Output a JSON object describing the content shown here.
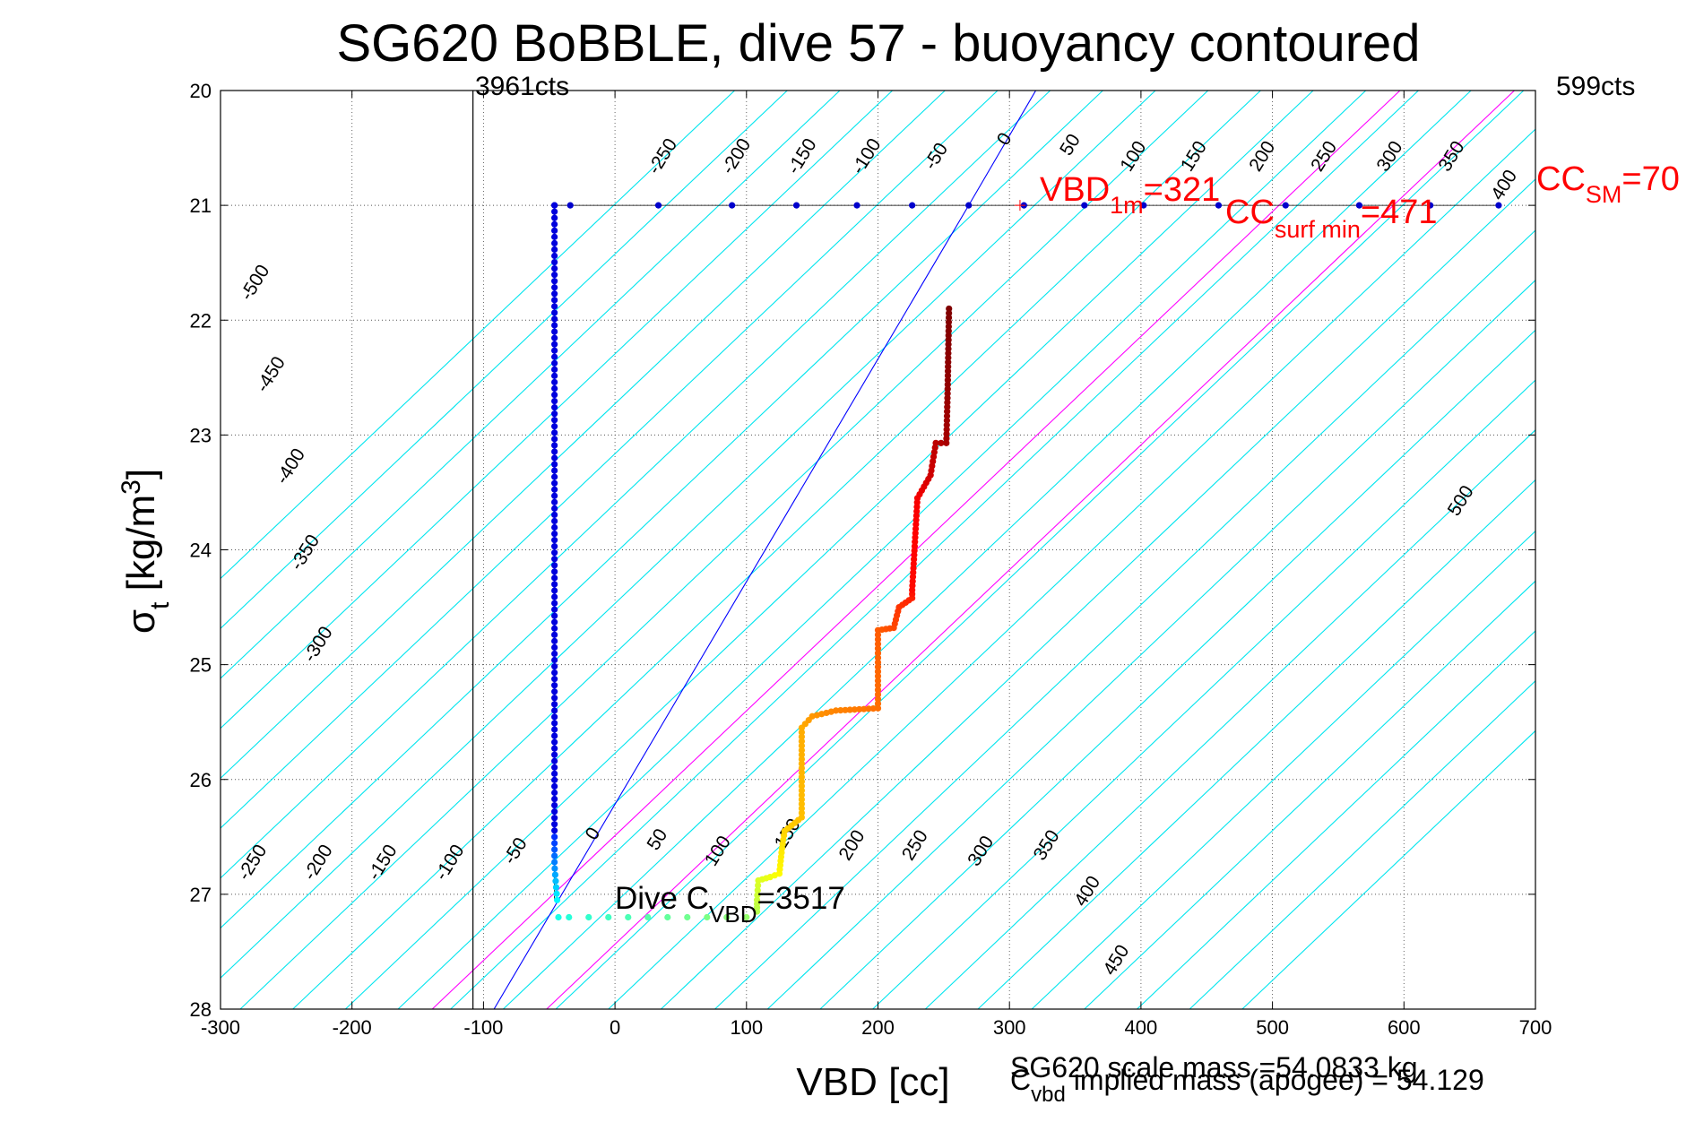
{
  "chart_data": {
    "type": "scatter",
    "title": "SG620 BoBBLE, dive 57 - buoyancy contoured",
    "xlabel": "VBD [cc]",
    "ylabel": {
      "main": "σ",
      "sub": "t",
      "rest": " [kg/m",
      "sup": "3",
      "close": "]"
    },
    "xlim": [
      -300,
      700
    ],
    "ylim": [
      20,
      28
    ],
    "y_reversed": true,
    "grid": true,
    "xticks": [
      -300,
      -200,
      -100,
      0,
      100,
      200,
      300,
      400,
      500,
      600,
      700
    ],
    "yticks": [
      20,
      21,
      22,
      23,
      24,
      25,
      26,
      27,
      28
    ],
    "xtick_labels": [
      "-300",
      "-200",
      "-100",
      "0",
      "100",
      "200",
      "300",
      "400",
      "500",
      "600",
      "700"
    ],
    "ytick_labels": [
      "20",
      "21",
      "22",
      "23",
      "24",
      "25",
      "26",
      "27",
      "28"
    ],
    "colors": {
      "contour": "#00e5ee",
      "zero_contour": "#0000ff",
      "magenta": "#ff00ff",
      "annotation": "#ff0000",
      "vertical_line": "#000000"
    },
    "contours": {
      "slope_cc_per_sigma": -92,
      "values": [
        -500,
        -450,
        -400,
        -350,
        -300,
        -250,
        -200,
        -150,
        -100,
        -50,
        0,
        50,
        100,
        150,
        200,
        250,
        300,
        350,
        400,
        450,
        500
      ],
      "zero_crossing_at_27": [
        -233,
        -193,
        -153,
        -113,
        -73,
        -33,
        7,
        47,
        87,
        127,
        168,
        208,
        248,
        288,
        328,
        368,
        409,
        449,
        489,
        529,
        569
      ],
      "magenta_crossing_at_27": [
        -47,
        40
      ],
      "blue_line": [
        [
          -92,
          28
        ],
        [
          269,
          21
        ],
        [
          320,
          20
        ]
      ]
    },
    "contour_labels_top": [
      {
        "text": "-250",
        "x": 40,
        "y": 20.6
      },
      {
        "text": "-200",
        "x": 96,
        "y": 20.6
      },
      {
        "text": "-150",
        "x": 146,
        "y": 20.6
      },
      {
        "text": "-100",
        "x": 195,
        "y": 20.6
      },
      {
        "text": "-50",
        "x": 248,
        "y": 20.6
      },
      {
        "text": "0",
        "x": 300,
        "y": 20.45
      },
      {
        "text": "50",
        "x": 350,
        "y": 20.5
      },
      {
        "text": "100",
        "x": 398,
        "y": 20.6
      },
      {
        "text": "150",
        "x": 444,
        "y": 20.6
      },
      {
        "text": "200",
        "x": 496,
        "y": 20.6
      },
      {
        "text": "250",
        "x": 543,
        "y": 20.6
      },
      {
        "text": "300",
        "x": 593,
        "y": 20.6
      },
      {
        "text": "350",
        "x": 640,
        "y": 20.6
      },
      {
        "text": "400",
        "x": 680,
        "y": 20.85
      }
    ],
    "contour_labels_left": [
      {
        "text": "-500",
        "x": -270,
        "y": 21.7
      },
      {
        "text": "-450",
        "x": -258,
        "y": 22.5
      },
      {
        "text": "-400",
        "x": -243,
        "y": 23.3
      },
      {
        "text": "-350",
        "x": -232,
        "y": 24.05
      },
      {
        "text": "-300",
        "x": -222,
        "y": 24.85
      }
    ],
    "contour_labels_bottom": [
      {
        "text": "-250",
        "x": -272,
        "y": 26.75
      },
      {
        "text": "-200",
        "x": -222,
        "y": 26.75
      },
      {
        "text": "-150",
        "x": -173,
        "y": 26.75
      },
      {
        "text": "-100",
        "x": -122,
        "y": 26.75
      },
      {
        "text": "-50",
        "x": -72,
        "y": 26.65
      },
      {
        "text": "0",
        "x": -13,
        "y": 26.5
      },
      {
        "text": "50",
        "x": 36,
        "y": 26.55
      },
      {
        "text": "100",
        "x": 82,
        "y": 26.65
      },
      {
        "text": "150",
        "x": 135,
        "y": 26.5
      },
      {
        "text": "200",
        "x": 184,
        "y": 26.6
      },
      {
        "text": "250",
        "x": 232,
        "y": 26.6
      },
      {
        "text": "300",
        "x": 282,
        "y": 26.65
      },
      {
        "text": "350",
        "x": 332,
        "y": 26.6
      },
      {
        "text": "400",
        "x": 363,
        "y": 27.0
      },
      {
        "text": "450",
        "x": 385,
        "y": 27.6
      },
      {
        "text": "500",
        "x": 647,
        "y": 23.6
      }
    ],
    "vertical_line_x": -108,
    "dive_path": {
      "surface_row_y": 21.0,
      "surface_x": [
        -46,
        -34,
        33,
        89,
        138,
        184,
        226,
        269,
        311,
        357,
        402,
        459,
        510,
        566,
        620,
        672
      ],
      "descent_column_x": -46,
      "descent_from": 21.0,
      "descent_to": 27.05,
      "bottom_row_y": 27.2,
      "bottom_row_x": [
        -43,
        -35,
        -20,
        -5,
        10,
        25,
        40,
        55,
        70,
        85,
        100
      ],
      "profile": [
        [
          108,
          27.15
        ],
        [
          108,
          27.05
        ],
        [
          109,
          26.88
        ],
        [
          118,
          26.85
        ],
        [
          125,
          26.82
        ],
        [
          127,
          26.6
        ],
        [
          129,
          26.45
        ],
        [
          142,
          26.33
        ],
        [
          142,
          25.55
        ],
        [
          150,
          25.45
        ],
        [
          168,
          25.4
        ],
        [
          200,
          25.38
        ],
        [
          200,
          24.7
        ],
        [
          212,
          24.68
        ],
        [
          216,
          24.5
        ],
        [
          226,
          24.42
        ],
        [
          226,
          24.35
        ],
        [
          230,
          23.55
        ],
        [
          235,
          23.45
        ],
        [
          240,
          23.35
        ],
        [
          244,
          23.07
        ],
        [
          252,
          23.07
        ],
        [
          253,
          22.6
        ],
        [
          254,
          21.9
        ]
      ]
    },
    "annotations": {
      "cts_left": "3961cts",
      "cts_right": "599cts",
      "vbd1m_main": "VBD",
      "vbd1m_sub": "1m",
      "vbd1m_val": "=321",
      "ccsurf_main": "CC",
      "ccsurf_sub": "surf min",
      "ccsurf_val": "=471",
      "ccsm_main": "CC",
      "ccsm_sub": "SM",
      "ccsm_val": "=70",
      "dive_main": "Dive C",
      "dive_sub": "VBD",
      "dive_val": "=3517",
      "scale_mass": "SG620 scale mass =54.0833 kg",
      "implied_main": "C",
      "implied_sub": "vbd",
      "implied_val": " implied mass (apogee) = 54.129"
    }
  }
}
